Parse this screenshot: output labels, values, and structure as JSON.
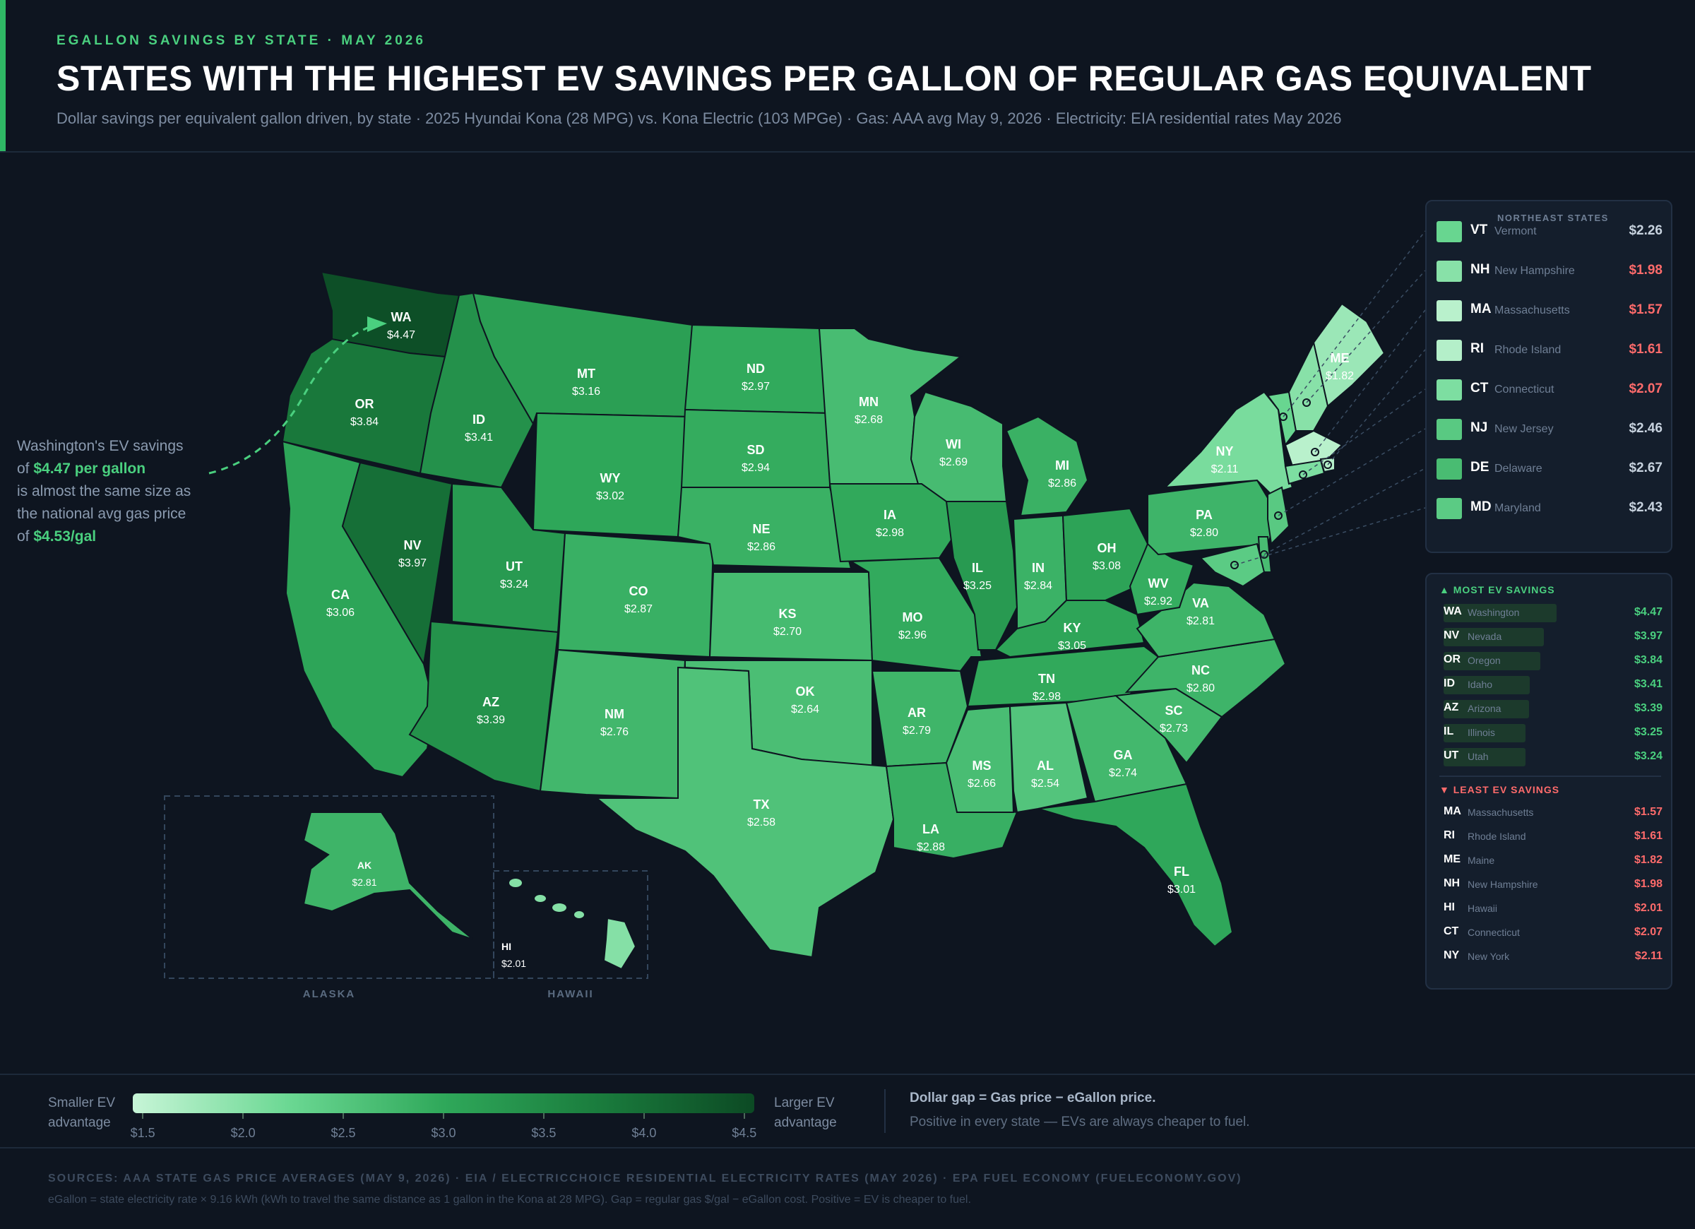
{
  "header": {
    "kicker": "EGALLON SAVINGS BY STATE · MAY 2026",
    "title": "STATES WITH THE HIGHEST EV SAVINGS PER GALLON OF REGULAR GAS EQUIVALENT",
    "subtitle": "Dollar savings per equivalent gallon driven, by state  ·  2025 Hyundai Kona (28 MPG) vs. Kona Electric (103 MPGe)  ·  Gas: AAA avg May 9, 2026  ·  Electricity: EIA residential rates May 2026"
  },
  "callout": {
    "line1": "Washington's EV savings",
    "of1": "of ",
    "highlight1": "$4.47 per gallon",
    "line2": "is almost the same size as",
    "line3": "the national avg gas price",
    "of2": "of ",
    "highlight2": "$4.53/gal"
  },
  "states": [
    {
      "abbr": "WA",
      "value": "$4.47",
      "savings": 4.47
    },
    {
      "abbr": "OR",
      "value": "$3.84",
      "savings": 3.84
    },
    {
      "abbr": "CA",
      "value": "$3.06",
      "savings": 3.06
    },
    {
      "abbr": "NV",
      "value": "$3.97",
      "savings": 3.97
    },
    {
      "abbr": "ID",
      "value": "$3.41",
      "savings": 3.41
    },
    {
      "abbr": "MT",
      "value": "$3.16",
      "savings": 3.16
    },
    {
      "abbr": "WY",
      "value": "$3.02",
      "savings": 3.02
    },
    {
      "abbr": "UT",
      "value": "$3.24",
      "savings": 3.24
    },
    {
      "abbr": "AZ",
      "value": "$3.39",
      "savings": 3.39
    },
    {
      "abbr": "CO",
      "value": "$2.87",
      "savings": 2.87
    },
    {
      "abbr": "NM",
      "value": "$2.76",
      "savings": 2.76
    },
    {
      "abbr": "ND",
      "value": "$2.97",
      "savings": 2.97
    },
    {
      "abbr": "SD",
      "value": "$2.94",
      "savings": 2.94
    },
    {
      "abbr": "NE",
      "value": "$2.86",
      "savings": 2.86
    },
    {
      "abbr": "KS",
      "value": "$2.70",
      "savings": 2.7
    },
    {
      "abbr": "OK",
      "value": "$2.64",
      "savings": 2.64
    },
    {
      "abbr": "TX",
      "value": "$2.58",
      "savings": 2.58
    },
    {
      "abbr": "MN",
      "value": "$2.68",
      "savings": 2.68
    },
    {
      "abbr": "IA",
      "value": "$2.98",
      "savings": 2.98
    },
    {
      "abbr": "MO",
      "value": "$2.96",
      "savings": 2.96
    },
    {
      "abbr": "AR",
      "value": "$2.79",
      "savings": 2.79
    },
    {
      "abbr": "LA",
      "value": "$2.88",
      "savings": 2.88
    },
    {
      "abbr": "WI",
      "value": "$2.69",
      "savings": 2.69
    },
    {
      "abbr": "IL",
      "value": "$3.25",
      "savings": 3.25
    },
    {
      "abbr": "MI",
      "value": "$2.86",
      "savings": 2.86
    },
    {
      "abbr": "IN",
      "value": "$2.84",
      "savings": 2.84
    },
    {
      "abbr": "OH",
      "value": "$3.08",
      "savings": 3.08
    },
    {
      "abbr": "KY",
      "value": "$3.05",
      "savings": 3.05
    },
    {
      "abbr": "TN",
      "value": "$2.98",
      "savings": 2.98
    },
    {
      "abbr": "MS",
      "value": "$2.66",
      "savings": 2.66
    },
    {
      "abbr": "AL",
      "value": "$2.54",
      "savings": 2.54
    },
    {
      "abbr": "GA",
      "value": "$2.74",
      "savings": 2.74
    },
    {
      "abbr": "FL",
      "value": "$3.01",
      "savings": 3.01
    },
    {
      "abbr": "SC",
      "value": "$2.73",
      "savings": 2.73
    },
    {
      "abbr": "NC",
      "value": "$2.80",
      "savings": 2.8
    },
    {
      "abbr": "VA",
      "value": "$2.81",
      "savings": 2.81
    },
    {
      "abbr": "WV",
      "value": "$2.92",
      "savings": 2.92
    },
    {
      "abbr": "PA",
      "value": "$2.80",
      "savings": 2.8
    },
    {
      "abbr": "NY",
      "value": "$2.11",
      "savings": 2.11
    },
    {
      "abbr": "ME",
      "value": "$1.82",
      "savings": 1.82
    },
    {
      "abbr": "AK",
      "value": "$2.81",
      "savings": 2.81
    },
    {
      "abbr": "HI",
      "value": "$2.01",
      "savings": 2.01
    }
  ],
  "inset_labels": {
    "alaska": "ALASKA",
    "hawaii": "HAWAII"
  },
  "northeast": {
    "heading": "NORTHEAST STATES",
    "items": [
      {
        "abbr": "VT",
        "name": "Vermont",
        "value": "$2.26",
        "savings": 2.26
      },
      {
        "abbr": "NH",
        "name": "New Hampshire",
        "value": "$1.98",
        "savings": 1.98
      },
      {
        "abbr": "MA",
        "name": "Massachusetts",
        "value": "$1.57",
        "savings": 1.57
      },
      {
        "abbr": "RI",
        "name": "Rhode Island",
        "value": "$1.61",
        "savings": 1.61
      },
      {
        "abbr": "CT",
        "name": "Connecticut",
        "value": "$2.07",
        "savings": 2.07
      },
      {
        "abbr": "NJ",
        "name": "New Jersey",
        "value": "$2.46",
        "savings": 2.46
      },
      {
        "abbr": "DE",
        "name": "Delaware",
        "value": "$2.67",
        "savings": 2.67
      },
      {
        "abbr": "MD",
        "name": "Maryland",
        "value": "$2.43",
        "savings": 2.43
      }
    ]
  },
  "most": {
    "heading": "▲ MOST EV SAVINGS",
    "items": [
      {
        "abbr": "WA",
        "name": "Washington",
        "value": "$4.47",
        "savings": 4.47
      },
      {
        "abbr": "NV",
        "name": "Nevada",
        "value": "$3.97",
        "savings": 3.97
      },
      {
        "abbr": "OR",
        "name": "Oregon",
        "value": "$3.84",
        "savings": 3.84
      },
      {
        "abbr": "ID",
        "name": "Idaho",
        "value": "$3.41",
        "savings": 3.41
      },
      {
        "abbr": "AZ",
        "name": "Arizona",
        "value": "$3.39",
        "savings": 3.39
      },
      {
        "abbr": "IL",
        "name": "Illinois",
        "value": "$3.25",
        "savings": 3.25
      },
      {
        "abbr": "UT",
        "name": "Utah",
        "value": "$3.24",
        "savings": 3.24
      }
    ]
  },
  "least": {
    "heading": "▼ LEAST EV SAVINGS",
    "items": [
      {
        "abbr": "MA",
        "name": "Massachusetts",
        "value": "$1.57"
      },
      {
        "abbr": "RI",
        "name": "Rhode Island",
        "value": "$1.61"
      },
      {
        "abbr": "ME",
        "name": "Maine",
        "value": "$1.82"
      },
      {
        "abbr": "NH",
        "name": "New Hampshire",
        "value": "$1.98"
      },
      {
        "abbr": "HI",
        "name": "Hawaii",
        "value": "$2.01"
      },
      {
        "abbr": "CT",
        "name": "Connecticut",
        "value": "$2.07"
      },
      {
        "abbr": "NY",
        "name": "New York",
        "value": "$2.11"
      }
    ]
  },
  "legend": {
    "left_line1": "Smaller EV",
    "left_line2": "advantage",
    "right_line1": "Larger EV",
    "right_line2": "advantage",
    "ticks": [
      "$1.5",
      "$2.0",
      "$2.5",
      "$3.0",
      "$3.5",
      "$4.0",
      "$4.5"
    ],
    "tick_values": [
      1.5,
      2.0,
      2.5,
      3.0,
      3.5,
      4.0,
      4.5
    ],
    "scale_min": 1.45,
    "scale_max": 4.55,
    "note_bold": "Dollar gap = Gas price − eGallon price.",
    "note": "Positive in every state — EVs are always cheaper to fuel."
  },
  "footer": {
    "sources": "SOURCES: AAA STATE GAS PRICE AVERAGES (MAY 9, 2026)  ·  EIA / ELECTRICCHOICE RESIDENTIAL ELECTRICITY RATES (MAY 2026)  ·  EPA FUEL ECONOMY (FUELECONOMY.GOV)",
    "note": "eGallon = state electricity rate × 9.16 kWh (kWh to travel the same distance as 1 gallon in the Kona at 28 MPG). Gap = regular gas $/gal − eGallon cost. Positive = EV is cheaper to fuel."
  },
  "colors": {
    "accent": "#4ad07f",
    "negative": "#ff6b6b",
    "background": "#0e1520",
    "scale_low": "#c7f5d7",
    "scale_high": "#0c4a24"
  }
}
